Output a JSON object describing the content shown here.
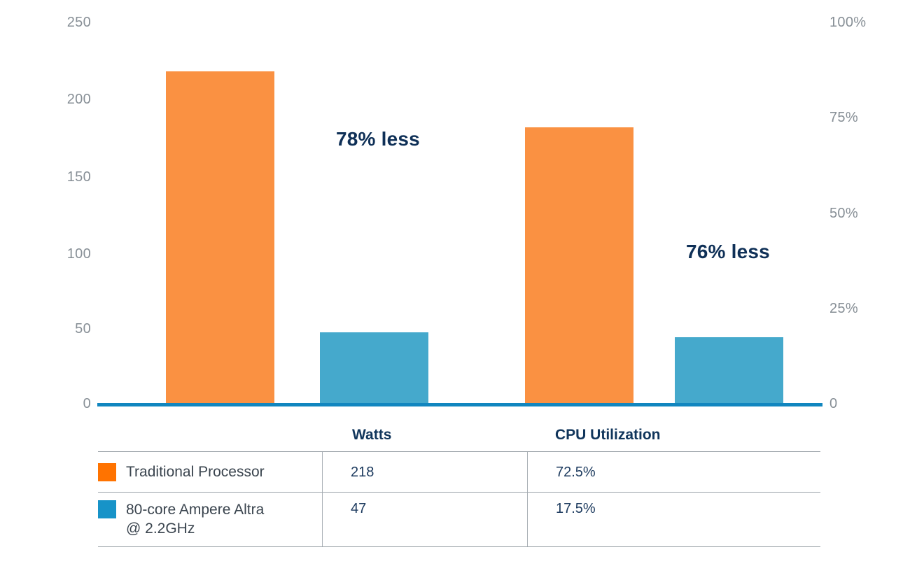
{
  "chart_data": {
    "type": "bar",
    "title": "",
    "categories": [
      "Watts",
      "CPU Utilization"
    ],
    "series": [
      {
        "name": "Traditional Processor",
        "swatch_color": "#FF7300",
        "bar_color": "#FA9142",
        "values": [
          218,
          72.5
        ],
        "value_labels": [
          "218",
          "72.5%"
        ]
      },
      {
        "name": "80-core Ampere Altra\n@ 2.2GHz",
        "swatch_color": "#1793C8",
        "bar_color": "#45A9CC",
        "values": [
          47,
          17.5
        ],
        "value_labels": [
          "47",
          "17.5%"
        ]
      }
    ],
    "left_axis": {
      "max": 250,
      "min": 0,
      "ticks": [
        "250",
        "200",
        "150",
        "100",
        "50",
        "0"
      ]
    },
    "right_axis": {
      "max": 100,
      "min": 0,
      "ticks": [
        "100%",
        "75%",
        "50%",
        "25%",
        "0"
      ]
    },
    "annotations": [
      "78% less",
      "76% less"
    ],
    "baseline_color": "#1186BF",
    "grid": false,
    "legend_position": "bottom-table"
  }
}
